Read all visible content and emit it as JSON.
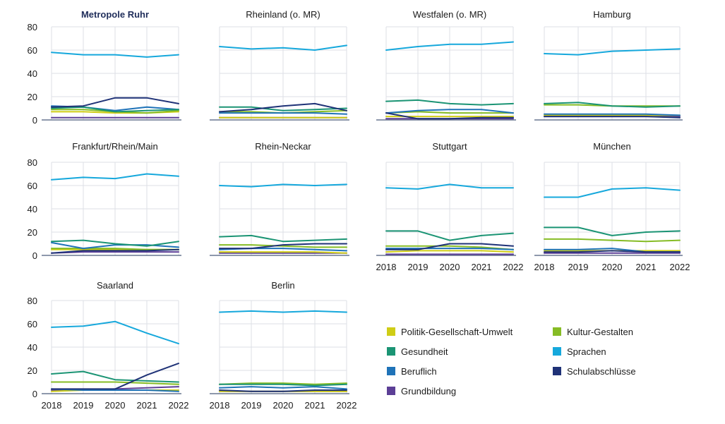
{
  "chart_data": {
    "type": "line",
    "x": [
      2018,
      2019,
      2020,
      2021,
      2022
    ],
    "ylim": [
      0,
      80
    ],
    "yticks": [
      0,
      20,
      40,
      60,
      80
    ],
    "series_meta": [
      {
        "key": "politik",
        "name": "Politik-Gesellschaft-Umwelt",
        "color": "#cfcd16"
      },
      {
        "key": "kultur",
        "name": "Kultur-Gestalten",
        "color": "#86bc25"
      },
      {
        "key": "gesundheit",
        "name": "Gesundheit",
        "color": "#1b9474"
      },
      {
        "key": "sprachen",
        "name": "Sprachen",
        "color": "#16a8dc"
      },
      {
        "key": "beruflich",
        "name": "Beruflich",
        "color": "#1f73b8"
      },
      {
        "key": "schulabschluesse",
        "name": "Schulabschlüsse",
        "color": "#1f3277"
      },
      {
        "key": "grundbildung",
        "name": "Grundbildung",
        "color": "#5c3f96"
      }
    ],
    "panels": [
      {
        "title": "Metropole Ruhr",
        "bold": true,
        "series": {
          "politik": [
            7,
            7,
            6,
            6,
            7
          ],
          "kultur": [
            9,
            9,
            7,
            6,
            8
          ],
          "gesundheit": [
            10,
            11,
            7,
            8,
            9
          ],
          "sprachen": [
            58,
            56,
            56,
            54,
            56
          ],
          "beruflich": [
            12,
            11,
            8,
            11,
            9
          ],
          "schulabschluesse": [
            11,
            12,
            19,
            19,
            14
          ],
          "grundbildung": [
            2,
            2,
            2,
            2,
            2
          ]
        }
      },
      {
        "title": "Rheinland (o. MR)",
        "bold": false,
        "series": {
          "politik": [
            2,
            2,
            2,
            2,
            2
          ],
          "kultur": [
            7,
            7,
            6,
            7,
            8
          ],
          "gesundheit": [
            11,
            11,
            8,
            9,
            10
          ],
          "sprachen": [
            63,
            61,
            62,
            60,
            64
          ],
          "beruflich": [
            6,
            6,
            6,
            6,
            5
          ],
          "schulabschluesse": [
            7,
            9,
            12,
            14,
            8
          ],
          "grundbildung": [
            2,
            2,
            2,
            2,
            2
          ]
        }
      },
      {
        "title": "Westfalen (o. MR)",
        "bold": false,
        "series": {
          "politik": [
            3,
            3,
            3,
            3,
            3
          ],
          "kultur": [
            6,
            7,
            6,
            6,
            6
          ],
          "gesundheit": [
            16,
            17,
            14,
            13,
            14
          ],
          "sprachen": [
            60,
            63,
            65,
            65,
            67
          ],
          "beruflich": [
            6,
            8,
            9,
            9,
            6
          ],
          "schulabschluesse": [
            6,
            1,
            1,
            2,
            2
          ],
          "grundbildung": [
            1,
            1,
            1,
            1,
            1
          ]
        }
      },
      {
        "title": "Hamburg",
        "bold": false,
        "series": {
          "politik": [
            4,
            4,
            4,
            4,
            4
          ],
          "kultur": [
            13,
            13,
            12,
            12,
            12
          ],
          "gesundheit": [
            14,
            15,
            12,
            11,
            12
          ],
          "sprachen": [
            57,
            56,
            59,
            60,
            61
          ],
          "beruflich": [
            5,
            5,
            5,
            5,
            4
          ],
          "schulabschluesse": [
            3,
            3,
            3,
            3,
            2
          ],
          "grundbildung": [
            3,
            3,
            3,
            3,
            3
          ]
        }
      },
      {
        "title": "Frankfurt/Rhein/Main",
        "bold": false,
        "series": {
          "politik": [
            5,
            5,
            5,
            5,
            5
          ],
          "kultur": [
            6,
            6,
            6,
            5,
            5
          ],
          "gesundheit": [
            12,
            13,
            10,
            8,
            12
          ],
          "sprachen": [
            65,
            67,
            66,
            70,
            68
          ],
          "beruflich": [
            11,
            6,
            9,
            9,
            7
          ],
          "schulabschluesse": [
            2,
            4,
            4,
            4,
            5
          ],
          "grundbildung": [
            2,
            3,
            3,
            3,
            3
          ]
        }
      },
      {
        "title": "Rhein-Neckar",
        "bold": false,
        "series": {
          "politik": [
            3,
            3,
            3,
            3,
            2
          ],
          "kultur": [
            9,
            9,
            8,
            7,
            7
          ],
          "gesundheit": [
            16,
            17,
            12,
            13,
            14
          ],
          "sprachen": [
            60,
            59,
            61,
            60,
            61
          ],
          "beruflich": [
            5,
            6,
            6,
            5,
            4
          ],
          "schulabschluesse": [
            6,
            6,
            9,
            10,
            10
          ],
          "grundbildung": [
            2,
            2,
            2,
            2,
            2
          ]
        }
      },
      {
        "title": "Stuttgart",
        "bold": false,
        "series": {
          "politik": [
            3,
            4,
            4,
            4,
            3
          ],
          "kultur": [
            8,
            8,
            8,
            7,
            5
          ],
          "gesundheit": [
            21,
            21,
            13,
            17,
            19
          ],
          "sprachen": [
            58,
            57,
            61,
            58,
            58
          ],
          "beruflich": [
            6,
            6,
            6,
            6,
            5
          ],
          "schulabschluesse": [
            5,
            5,
            10,
            10,
            8
          ],
          "grundbildung": [
            1,
            1,
            1,
            1,
            1
          ]
        }
      },
      {
        "title": "München",
        "bold": false,
        "series": {
          "politik": [
            4,
            4,
            4,
            4,
            4
          ],
          "kultur": [
            14,
            14,
            13,
            12,
            13
          ],
          "gesundheit": [
            24,
            24,
            17,
            20,
            21
          ],
          "sprachen": [
            50,
            50,
            57,
            58,
            56
          ],
          "beruflich": [
            5,
            5,
            6,
            3,
            3
          ],
          "schulabschluesse": [
            3,
            3,
            4,
            3,
            3
          ],
          "grundbildung": [
            2,
            2,
            2,
            2,
            2
          ]
        }
      },
      {
        "title": "Saarland",
        "bold": false,
        "series": {
          "politik": [
            2,
            3,
            3,
            3,
            3
          ],
          "kultur": [
            10,
            10,
            10,
            9,
            8
          ],
          "gesundheit": [
            17,
            19,
            12,
            11,
            10
          ],
          "sprachen": [
            57,
            58,
            62,
            52,
            43
          ],
          "beruflich": [
            4,
            3,
            3,
            3,
            2
          ],
          "schulabschluesse": [
            4,
            4,
            4,
            16,
            26
          ],
          "grundbildung": [
            3,
            3,
            4,
            5,
            6
          ]
        }
      },
      {
        "title": "Berlin",
        "bold": false,
        "series": {
          "politik": [
            2,
            2,
            2,
            2,
            2
          ],
          "kultur": [
            8,
            9,
            9,
            8,
            9
          ],
          "gesundheit": [
            8,
            8,
            8,
            7,
            8
          ],
          "sprachen": [
            70,
            71,
            70,
            71,
            70
          ],
          "beruflich": [
            5,
            6,
            5,
            6,
            4
          ],
          "schulabschluesse": [
            3,
            2,
            2,
            3,
            3
          ],
          "grundbildung": [
            2,
            2,
            2,
            2,
            2
          ]
        }
      }
    ],
    "legend": {
      "columns": [
        [
          "politik",
          "gesundheit",
          "beruflich",
          "grundbildung"
        ],
        [
          "kultur",
          "sprachen",
          "schulabschluesse"
        ]
      ]
    }
  }
}
